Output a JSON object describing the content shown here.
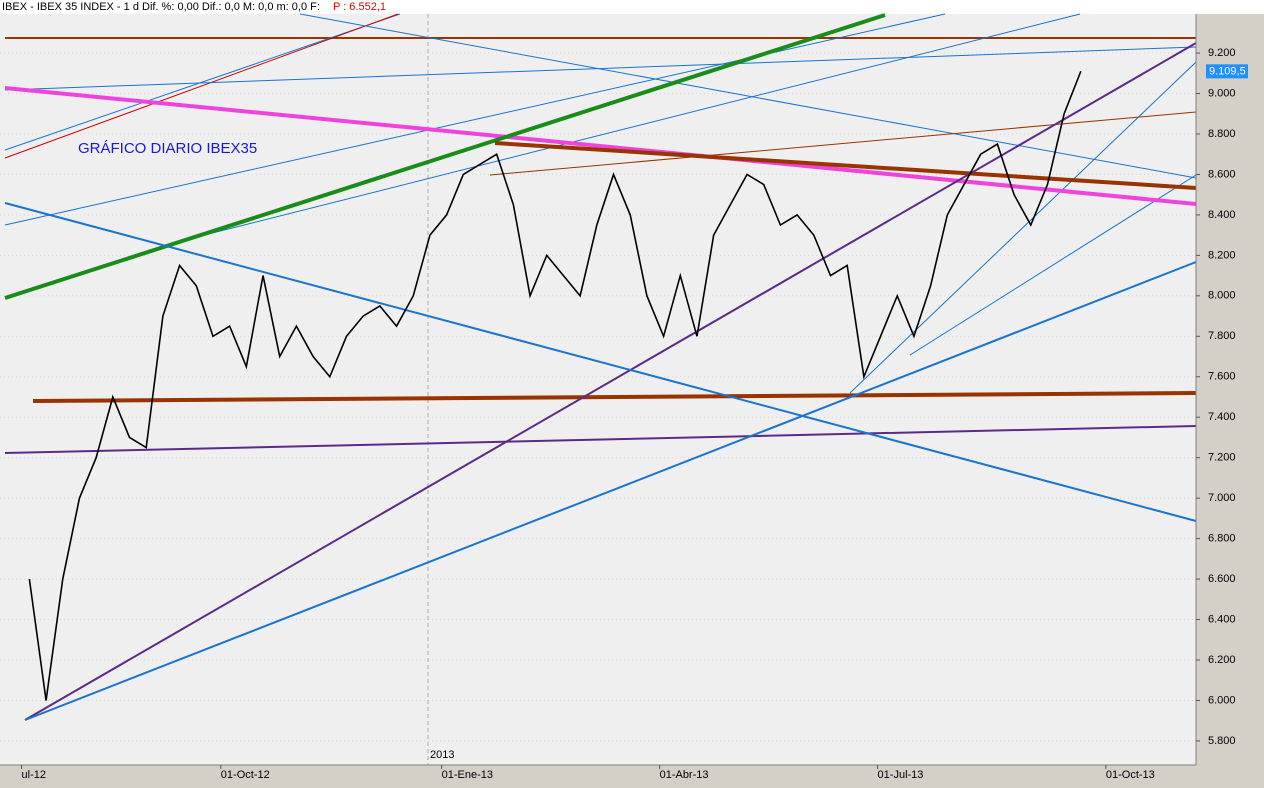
{
  "header": {
    "text": "IBEX - IBEX 35 INDEX - 1 d Dif. %: 0,00 Dif.: 0,0 M: 0,0 m: 0,0 F:",
    "price": "P : 6.552,1"
  },
  "chart_data": {
    "type": "line",
    "annotation": "GRÁFICO DIARIO IBEX35",
    "year_label": "2013",
    "categories": [
      null,
      null,
      null,
      null,
      null,
      null,
      null,
      null,
      null,
      null,
      null,
      null,
      null,
      null,
      null,
      null,
      null,
      null,
      null,
      null,
      null,
      null,
      null,
      null,
      null,
      null,
      null,
      null,
      null,
      null,
      null,
      null,
      null,
      null,
      null,
      null,
      null,
      null,
      null,
      null,
      null,
      null,
      null,
      null,
      null,
      null,
      null,
      null,
      null,
      null,
      null,
      null,
      null,
      null,
      null,
      null,
      null,
      null,
      null,
      null,
      null,
      null,
      null,
      null
    ],
    "values": [
      6600,
      6000,
      6600,
      7000,
      7200,
      7500,
      7300,
      7250,
      7900,
      8150,
      8050,
      7800,
      7850,
      7650,
      8100,
      7700,
      7850,
      7700,
      7600,
      7800,
      7900,
      7950,
      7850,
      8000,
      8300,
      8400,
      8600,
      8650,
      8700,
      8450,
      8000,
      8200,
      8100,
      8000,
      8350,
      8600,
      8400,
      8000,
      7800,
      8100,
      7800,
      8300,
      8450,
      8600,
      8550,
      8350,
      8400,
      8300,
      8100,
      8150,
      7600,
      7800,
      8000,
      7800,
      8050,
      8400,
      8550,
      8700,
      8750,
      8500,
      8350,
      8550,
      8900,
      9110
    ],
    "color": "#000000",
    "last_value": {
      "value": 9109.5,
      "label": "9.109,5"
    },
    "xlim": [
      -1.76,
      69.9
    ],
    "xticks": [
      {
        "value": -0.47,
        "label": "ul-12"
      },
      {
        "value": 11.47,
        "label": "01-Oct-12"
      },
      {
        "value": 24.7,
        "label": "01-Ene-13"
      },
      {
        "value": 37.76,
        "label": "01-Abr-13"
      },
      {
        "value": 50.82,
        "label": "01-Jul-13"
      },
      {
        "value": 64.5,
        "label": "01-Oct-13"
      }
    ],
    "ylim": [
      5681,
      9393
    ],
    "yticks": [
      {
        "value": 5800,
        "label": "5.800"
      },
      {
        "value": 6000,
        "label": "6.000"
      },
      {
        "value": 6200,
        "label": "6.200"
      },
      {
        "value": 6400,
        "label": "6.400"
      },
      {
        "value": 6600,
        "label": "6.600"
      },
      {
        "value": 6800,
        "label": "6.800"
      },
      {
        "value": 7000,
        "label": "7.000"
      },
      {
        "value": 7200,
        "label": "7.200"
      },
      {
        "value": 7400,
        "label": "7.400"
      },
      {
        "value": 7600,
        "label": "7.600"
      },
      {
        "value": 7800,
        "label": "7.800"
      },
      {
        "value": 8000,
        "label": "8.000"
      },
      {
        "value": 8200,
        "label": "8.200"
      },
      {
        "value": 8400,
        "label": "8.400"
      },
      {
        "value": 8600,
        "label": "8.600"
      },
      {
        "value": 8800,
        "label": "8.800"
      },
      {
        "value": 9000,
        "label": "9.000"
      },
      {
        "value": 9200,
        "label": "9.200"
      }
    ],
    "grid": true
  }
}
